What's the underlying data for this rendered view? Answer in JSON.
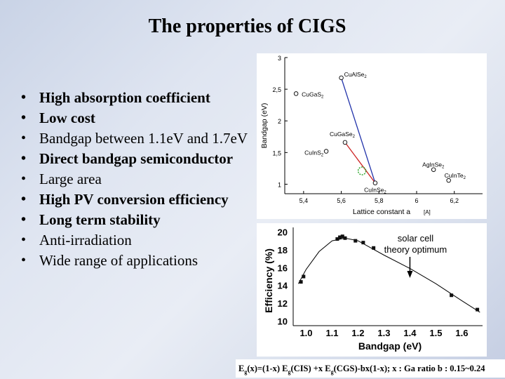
{
  "slide": {
    "title": "The properties of CIGS",
    "bullets": [
      {
        "text": "High absorption coefficient",
        "bold": true
      },
      {
        "text": "Low cost",
        "bold": true
      },
      {
        "text": "Bandgap between 1.1eV and 1.7eV",
        "bold": false
      },
      {
        "text": "Direct bandgap semiconductor",
        "bold": true
      },
      {
        "text": "Large area",
        "bold": false
      },
      {
        "text": "High PV conversion efficiency",
        "bold": true
      },
      {
        "text": "Long term stability",
        "bold": true
      },
      {
        "text": "Anti-irradiation",
        "bold": false
      },
      {
        "text": "Wide range of applications",
        "bold": false
      }
    ],
    "formula_parts": [
      "E",
      "g",
      "(x)=(1-x) E",
      "g",
      "(CIS) +x E",
      "g",
      "(CGS)-bx(1-x); x : Ga ratio b : 0.15~0.24"
    ]
  },
  "chart_data": [
    {
      "type": "scatter",
      "xlabel": "Lattice constant a",
      "xunit": "[A]",
      "ylabel": "Bandgap (eV)",
      "xlim": [
        5.3,
        6.35
      ],
      "ylim": [
        0.85,
        3.0
      ],
      "xticks": [
        "5,4",
        "5,6",
        "5,8",
        "6",
        "6,2"
      ],
      "xtick_values": [
        5.4,
        5.6,
        5.8,
        6.0,
        6.2
      ],
      "yticks": [
        "1",
        "1,5",
        "2",
        "2,5",
        "3"
      ],
      "ytick_values": [
        1.0,
        1.5,
        2.0,
        2.5,
        3.0
      ],
      "points": [
        {
          "label": "CuAlSe2",
          "x": 5.6,
          "y": 2.68
        },
        {
          "label": "CuGaS2",
          "x": 5.36,
          "y": 2.43
        },
        {
          "label": "CuGaSe2",
          "x": 5.62,
          "y": 1.66
        },
        {
          "label": "CuInS2",
          "x": 5.52,
          "y": 1.52
        },
        {
          "label": "CuInSe2",
          "x": 5.78,
          "y": 1.02
        },
        {
          "label": "AgInSe2",
          "x": 6.09,
          "y": 1.23
        },
        {
          "label": "CuInTe2",
          "x": 6.17,
          "y": 1.06
        }
      ],
      "lines": [
        {
          "from": "CuAlSe2",
          "to": "CuInSe2",
          "color": "#2233aa"
        },
        {
          "from": "CuGaSe2",
          "to": "CuInSe2",
          "color": "#cc2222"
        }
      ],
      "highlight": {
        "x": 5.71,
        "y": 1.21,
        "color": "#33aa33"
      }
    },
    {
      "type": "line",
      "xlabel": "Bandgap (eV)",
      "ylabel": "Efficiency (%)",
      "xlim": [
        0.95,
        1.68
      ],
      "ylim": [
        9.5,
        20.5
      ],
      "xticks": [
        "1.0",
        "1.1",
        "1.2",
        "1.3",
        "1.4",
        "1.5",
        "1.6"
      ],
      "yticks": [
        "10",
        "12",
        "14",
        "16",
        "18",
        "20"
      ],
      "annotation": {
        "lines": [
          "solar cell",
          "theory optimum"
        ],
        "x": 1.4
      },
      "curve": [
        {
          "x": 0.97,
          "y": 14.2
        },
        {
          "x": 1.0,
          "y": 15.8
        },
        {
          "x": 1.05,
          "y": 17.8
        },
        {
          "x": 1.1,
          "y": 19.0
        },
        {
          "x": 1.15,
          "y": 19.3
        },
        {
          "x": 1.2,
          "y": 19.0
        },
        {
          "x": 1.3,
          "y": 17.4
        },
        {
          "x": 1.4,
          "y": 15.9
        },
        {
          "x": 1.5,
          "y": 14.2
        },
        {
          "x": 1.6,
          "y": 12.3
        },
        {
          "x": 1.67,
          "y": 11.0
        }
      ],
      "points": [
        {
          "x": 0.98,
          "y": 14.4
        },
        {
          "x": 0.99,
          "y": 15.0
        },
        {
          "x": 1.12,
          "y": 19.2
        },
        {
          "x": 1.13,
          "y": 19.4
        },
        {
          "x": 1.14,
          "y": 19.5
        },
        {
          "x": 1.15,
          "y": 19.3
        },
        {
          "x": 1.19,
          "y": 19.0
        },
        {
          "x": 1.22,
          "y": 18.8
        },
        {
          "x": 1.26,
          "y": 18.2
        },
        {
          "x": 1.56,
          "y": 12.9
        },
        {
          "x": 1.66,
          "y": 11.3
        }
      ]
    }
  ]
}
